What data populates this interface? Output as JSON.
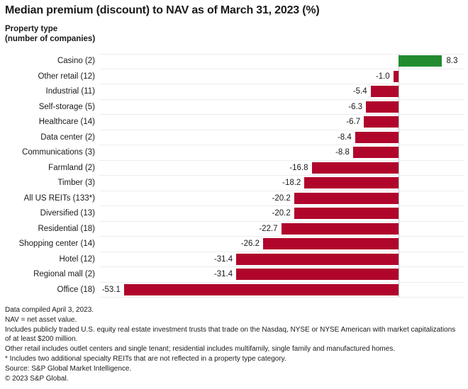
{
  "header": {
    "title": "Median premium (discount) to NAV as of March 31, 2023 (%)",
    "axis_label_line1": "Property type",
    "axis_label_line2": "(number of companies)"
  },
  "chart_data": {
    "type": "bar",
    "orientation": "horizontal",
    "title": "Median premium ((discount)) to NAV as of March 31, 2023 (%)",
    "ylabel": "Property type (number of companies)",
    "xlabel": "",
    "xlim": [
      -58,
      13.5
    ],
    "grid": "row separators only, no x-axis ticks",
    "zero_baseline": true,
    "categories": [
      "Casino (2)",
      "Other retail (12)",
      "Industrial (11)",
      "Self-storage (5)",
      "Healthcare (14)",
      "Data center (2)",
      "Communications (3)",
      "Farmland (2)",
      "Timber (3)",
      "All US REITs (133*)",
      "Diversified (13)",
      "Residential (18)",
      "Shopping center (14)",
      "Hotel (12)",
      "Regional mall (2)",
      "Office (18)"
    ],
    "values": [
      8.3,
      -1.0,
      -5.4,
      -6.3,
      -6.7,
      -8.4,
      -8.8,
      -16.8,
      -18.2,
      -20.2,
      -20.2,
      -22.7,
      -26.2,
      -31.4,
      -31.4,
      -53.1
    ],
    "colors": {
      "positive": "#228b2f",
      "negative": "#b0062c",
      "zero_line": "#bdbdbd",
      "gridline": "#ededed",
      "text": "#1a1a1a"
    }
  },
  "footer": {
    "lines": [
      "Data compiled April 3, 2023.",
      "NAV = net asset value.",
      "Includes publicly traded U.S. equity real estate investment trusts that trade on the Nasdaq, NYSE or NYSE American with market capitalizations of at least $200 million.",
      "Other retail includes outlet centers and single tenant; residential includes multifamily, single family and manufactured homes.",
      "* Includes two additional specialty REITs that are not reflected in a property type category.",
      "Source: S&P Global Market Intelligence.",
      "© 2023 S&P Global."
    ]
  }
}
